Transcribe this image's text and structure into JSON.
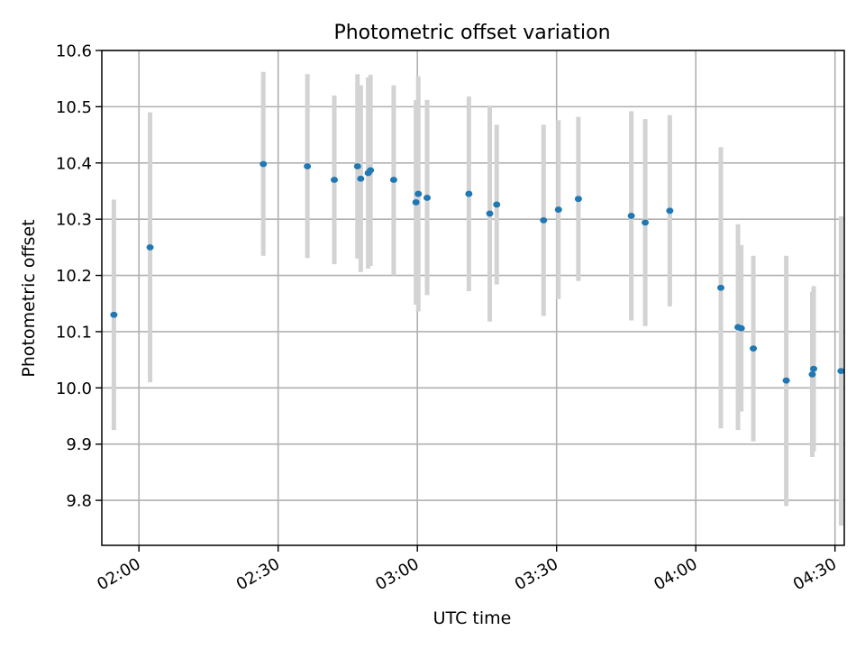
{
  "chart_data": {
    "type": "scatter",
    "title": "Photometric offset variation",
    "xlabel": "UTC time",
    "ylabel": "Photometric offset",
    "xlim": [
      "01:52",
      "04:32"
    ],
    "ylim": [
      9.72,
      10.6
    ],
    "x_ticks": [
      "02:00",
      "02:30",
      "03:00",
      "03:30",
      "04:00",
      "04:30"
    ],
    "y_ticks": [
      9.8,
      9.9,
      10.0,
      10.1,
      10.2,
      10.3,
      10.4,
      10.5,
      10.6
    ],
    "grid": true,
    "colors": {
      "point": "#1f77b4",
      "errorbar": "#d3d3d3",
      "grid": "#b0b0b0"
    },
    "points": [
      {
        "x": "01:54:36",
        "y": 10.13,
        "ylow": 9.925,
        "yhigh": 10.335
      },
      {
        "x": "02:02:24",
        "y": 10.25,
        "ylow": 10.01,
        "yhigh": 10.49
      },
      {
        "x": "02:26:48",
        "y": 10.398,
        "ylow": 10.235,
        "yhigh": 10.562
      },
      {
        "x": "02:36:18",
        "y": 10.394,
        "ylow": 10.231,
        "yhigh": 10.558
      },
      {
        "x": "02:42:06",
        "y": 10.37,
        "ylow": 10.22,
        "yhigh": 10.52
      },
      {
        "x": "02:47:06",
        "y": 10.394,
        "ylow": 10.23,
        "yhigh": 10.558
      },
      {
        "x": "02:47:48",
        "y": 10.372,
        "ylow": 10.206,
        "yhigh": 10.538
      },
      {
        "x": "02:49:24",
        "y": 10.382,
        "ylow": 10.212,
        "yhigh": 10.552
      },
      {
        "x": "02:49:54",
        "y": 10.387,
        "ylow": 10.217,
        "yhigh": 10.557
      },
      {
        "x": "02:54:54",
        "y": 10.37,
        "ylow": 10.2,
        "yhigh": 10.538
      },
      {
        "x": "02:59:42",
        "y": 10.33,
        "ylow": 10.148,
        "yhigh": 10.512
      },
      {
        "x": "03:00:12",
        "y": 10.345,
        "ylow": 10.136,
        "yhigh": 10.554
      },
      {
        "x": "03:02:06",
        "y": 10.338,
        "ylow": 10.165,
        "yhigh": 10.512
      },
      {
        "x": "03:11:06",
        "y": 10.345,
        "ylow": 10.172,
        "yhigh": 10.518
      },
      {
        "x": "03:15:36",
        "y": 10.31,
        "ylow": 10.118,
        "yhigh": 10.502
      },
      {
        "x": "03:17:06",
        "y": 10.326,
        "ylow": 10.184,
        "yhigh": 10.468
      },
      {
        "x": "03:27:12",
        "y": 10.298,
        "ylow": 10.128,
        "yhigh": 10.468
      },
      {
        "x": "03:30:24",
        "y": 10.317,
        "ylow": 10.158,
        "yhigh": 10.476
      },
      {
        "x": "03:34:42",
        "y": 10.336,
        "ylow": 10.19,
        "yhigh": 10.482
      },
      {
        "x": "03:46:06",
        "y": 10.306,
        "ylow": 10.12,
        "yhigh": 10.492
      },
      {
        "x": "03:49:06",
        "y": 10.294,
        "ylow": 10.11,
        "yhigh": 10.478
      },
      {
        "x": "03:54:24",
        "y": 10.315,
        "ylow": 10.145,
        "yhigh": 10.485
      },
      {
        "x": "04:05:24",
        "y": 10.178,
        "ylow": 9.928,
        "yhigh": 10.428
      },
      {
        "x": "04:09:06",
        "y": 10.108,
        "ylow": 9.925,
        "yhigh": 10.291
      },
      {
        "x": "04:09:48",
        "y": 10.106,
        "ylow": 9.958,
        "yhigh": 10.254
      },
      {
        "x": "04:12:24",
        "y": 10.07,
        "ylow": 9.905,
        "yhigh": 10.235
      },
      {
        "x": "04:19:30",
        "y": 10.013,
        "ylow": 9.79,
        "yhigh": 10.235
      },
      {
        "x": "04:25:06",
        "y": 10.024,
        "ylow": 9.877,
        "yhigh": 10.171
      },
      {
        "x": "04:25:24",
        "y": 10.034,
        "ylow": 9.887,
        "yhigh": 10.181
      },
      {
        "x": "04:31:18",
        "y": 10.03,
        "ylow": 9.755,
        "yhigh": 10.305
      }
    ]
  }
}
